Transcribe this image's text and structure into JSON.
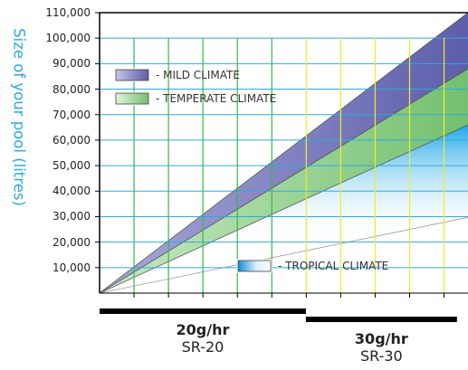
{
  "chart_data": {
    "type": "area",
    "title": "",
    "xlabel": "",
    "ylabel": "Size of your pool (litres)",
    "ylim": [
      0,
      110000
    ],
    "y_ticks": [
      "110,000",
      "100,000",
      "90,000",
      "80,000",
      "70,000",
      "60,000",
      "50,000",
      "40,000",
      "30,000",
      "20,000",
      "10,000"
    ],
    "grid": true,
    "legend": [
      {
        "label": "- MILD CLIMATE",
        "color": "#6e6eb8"
      },
      {
        "label": "- TEMPERATE CLIMATE",
        "color": "#8ecf8a"
      },
      {
        "label": "- TROPICAL CLIMATE",
        "color": "#1ea6e6"
      }
    ],
    "series": [
      {
        "name": "- MILD CLIMATE",
        "x": [
          0,
          1
        ],
        "values": [
          0,
          110000
        ]
      },
      {
        "name": "- TEMPERATE CLIMATE",
        "x": [
          0,
          1
        ],
        "values": [
          0,
          88000
        ]
      },
      {
        "name": "- TROPICAL CLIMATE",
        "x": [
          0,
          1
        ],
        "values": [
          0,
          66000
        ]
      }
    ],
    "x_ranges": [
      {
        "rate": "20g/hr",
        "model": "SR-20",
        "from": 0.0,
        "to": 0.56
      },
      {
        "rate": "30g/hr",
        "model": "SR-30",
        "from": 0.56,
        "to": 0.97
      }
    ],
    "colors": {
      "grid_y": "#29abe2",
      "grid_x_sr20": "#3cb44b",
      "grid_x_sr30": "#f2ea2a",
      "axis": "#000000"
    }
  }
}
